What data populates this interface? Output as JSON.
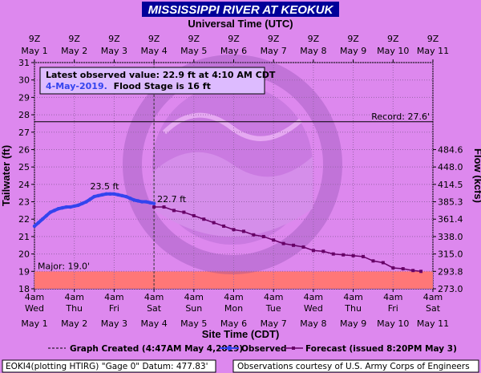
{
  "chart_data": {
    "type": "line",
    "title": "MISSISSIPPI RIVER AT KEOKUK",
    "top_axis": {
      "title": "Universal Time (UTC)",
      "ticks": [
        {
          "hour": "9Z",
          "date": "May  1"
        },
        {
          "hour": "9Z",
          "date": "May  2"
        },
        {
          "hour": "9Z",
          "date": "May  3"
        },
        {
          "hour": "9Z",
          "date": "May  4"
        },
        {
          "hour": "9Z",
          "date": "May  5"
        },
        {
          "hour": "9Z",
          "date": "May  6"
        },
        {
          "hour": "9Z",
          "date": "May  7"
        },
        {
          "hour": "9Z",
          "date": "May  8"
        },
        {
          "hour": "9Z",
          "date": "May  9"
        },
        {
          "hour": "9Z",
          "date": "May 10"
        },
        {
          "hour": "9Z",
          "date": "May 11"
        }
      ]
    },
    "bottom_axis": {
      "title": "Site Time (CDT)",
      "ticks": [
        {
          "time": "4am",
          "day": "Wed",
          "date": "May  1"
        },
        {
          "time": "4am",
          "day": "Thu",
          "date": "May  2"
        },
        {
          "time": "4am",
          "day": "Fri",
          "date": "May  3"
        },
        {
          "time": "4am",
          "day": "Sat",
          "date": "May  4"
        },
        {
          "time": "4am",
          "day": "Sun",
          "date": "May  5"
        },
        {
          "time": "4am",
          "day": "Mon",
          "date": "May  6"
        },
        {
          "time": "4am",
          "day": "Tue",
          "date": "May  7"
        },
        {
          "time": "4am",
          "day": "Wed",
          "date": "May  8"
        },
        {
          "time": "4am",
          "day": "Thu",
          "date": "May  9"
        },
        {
          "time": "4am",
          "day": "Fri",
          "date": "May 10"
        },
        {
          "time": "4am",
          "day": "Sat",
          "date": "May 11"
        }
      ]
    },
    "y_left": {
      "title": "Tailwater (ft)",
      "ylim": [
        18,
        31
      ],
      "ticks": [
        "18",
        "19",
        "20",
        "21",
        "22",
        "23",
        "24",
        "25",
        "26",
        "27",
        "28",
        "29",
        "30",
        "31"
      ]
    },
    "y_right": {
      "title": "Flow (kcfs)",
      "ticks": [
        {
          "label": "273.0",
          "stage": 18
        },
        {
          "label": "293.8",
          "stage": 19
        },
        {
          "label": "315.0",
          "stage": 20
        },
        {
          "label": "338.0",
          "stage": 21
        },
        {
          "label": "361.4",
          "stage": 22
        },
        {
          "label": "385.3",
          "stage": 23
        },
        {
          "label": "414.5",
          "stage": 24
        },
        {
          "label": "448.0",
          "stage": 25
        },
        {
          "label": "484.6",
          "stage": 26
        }
      ]
    },
    "x_range_days": [
      0,
      10
    ],
    "graph_created_day": 3,
    "record": {
      "label": "Record: 27.6'",
      "value": 27.6
    },
    "major": {
      "label": "Major: 19.0'",
      "value": 19.0
    },
    "latest": {
      "line1": "Latest observed value: 22.9 ft at 4:10 AM CDT",
      "line2_date": "4-May-2019.",
      "line2_flood": "Flood Stage is 16 ft"
    },
    "observed_peak_label": "23.5 ft",
    "forecast_start_label": "22.7 ft",
    "series": [
      {
        "name": "Observed",
        "color": "#3344ee",
        "points": [
          [
            0.0,
            21.6
          ],
          [
            0.1,
            21.8
          ],
          [
            0.2,
            22.0
          ],
          [
            0.3,
            22.2
          ],
          [
            0.4,
            22.4
          ],
          [
            0.5,
            22.5
          ],
          [
            0.6,
            22.6
          ],
          [
            0.7,
            22.65
          ],
          [
            0.8,
            22.7
          ],
          [
            0.9,
            22.7
          ],
          [
            1.0,
            22.75
          ],
          [
            1.1,
            22.8
          ],
          [
            1.2,
            22.9
          ],
          [
            1.3,
            23.0
          ],
          [
            1.4,
            23.15
          ],
          [
            1.5,
            23.3
          ],
          [
            1.6,
            23.35
          ],
          [
            1.7,
            23.4
          ],
          [
            1.8,
            23.45
          ],
          [
            1.9,
            23.45
          ],
          [
            2.0,
            23.45
          ],
          [
            2.1,
            23.4
          ],
          [
            2.2,
            23.35
          ],
          [
            2.3,
            23.3
          ],
          [
            2.4,
            23.2
          ],
          [
            2.5,
            23.1
          ],
          [
            2.6,
            23.05
          ],
          [
            2.7,
            23.0
          ],
          [
            2.8,
            23.0
          ],
          [
            2.9,
            22.95
          ],
          [
            3.0,
            22.9
          ]
        ]
      },
      {
        "name": "Forecast (issued 8:20PM May 3)",
        "color": "#660066",
        "points": [
          [
            3.0,
            22.7
          ],
          [
            3.25,
            22.7
          ],
          [
            3.5,
            22.5
          ],
          [
            3.75,
            22.4
          ],
          [
            4.0,
            22.2
          ],
          [
            4.25,
            22.0
          ],
          [
            4.5,
            21.8
          ],
          [
            4.75,
            21.6
          ],
          [
            5.0,
            21.4
          ],
          [
            5.25,
            21.3
          ],
          [
            5.5,
            21.1
          ],
          [
            5.75,
            21.0
          ],
          [
            6.0,
            20.8
          ],
          [
            6.25,
            20.6
          ],
          [
            6.5,
            20.5
          ],
          [
            6.75,
            20.4
          ],
          [
            7.0,
            20.2
          ],
          [
            7.25,
            20.15
          ],
          [
            7.5,
            20.0
          ],
          [
            7.75,
            19.95
          ],
          [
            8.0,
            19.9
          ],
          [
            8.25,
            19.85
          ],
          [
            8.5,
            19.6
          ],
          [
            8.75,
            19.5
          ],
          [
            9.0,
            19.2
          ],
          [
            9.25,
            19.15
          ],
          [
            9.5,
            19.05
          ],
          [
            9.7,
            19.0
          ]
        ]
      }
    ],
    "legend": {
      "graph_created": "Graph Created (4:47AM May 4,2019)",
      "observed": "Observed",
      "forecast": "Forecast (issued 8:20PM May 3)"
    },
    "footer": {
      "left": "EOKI4(plotting HTIRG) \"Gage 0\" Datum: 477.83'",
      "right": "Observations courtesy of U.S. Army Corps of Engineers"
    },
    "colors": {
      "plot_bg": "#dd88ee",
      "major_band": "#ff7777",
      "outer_bg": "#dd88ee",
      "title_bar": "#000099"
    }
  }
}
